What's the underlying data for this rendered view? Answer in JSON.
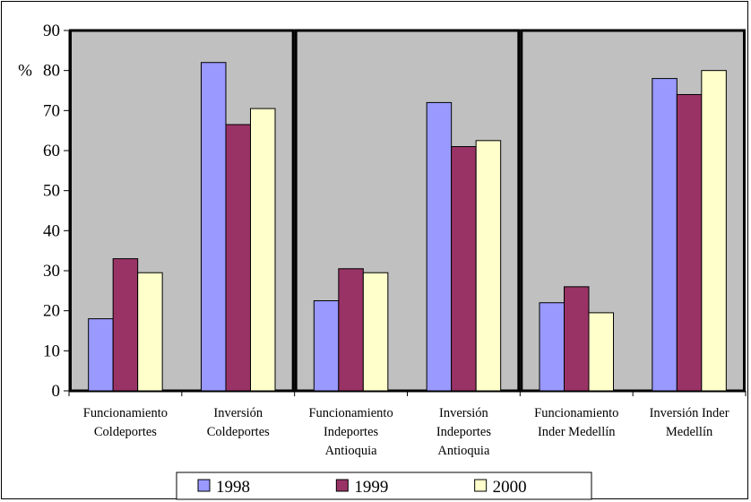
{
  "chart_data": {
    "type": "bar",
    "ylabel": "%",
    "ylim": [
      0,
      90
    ],
    "yticks": [
      0,
      10,
      20,
      30,
      40,
      50,
      60,
      70,
      80,
      90
    ],
    "grid": false,
    "legend_position": "bottom",
    "categories": [
      [
        "Funcionamiento",
        "Coldeportes"
      ],
      [
        "Inversión",
        "Coldeportes"
      ],
      [
        "Funcionamiento",
        "Indeportes",
        "Antioquia"
      ],
      [
        "Inversión",
        "Indeportes",
        "Antioquia"
      ],
      [
        "Funcionamiento",
        "Inder Medellín"
      ],
      [
        "Inversión Inder",
        "Medellín"
      ]
    ],
    "series": [
      {
        "name": "1998",
        "color": "#9999ff",
        "values": [
          18,
          82,
          22.5,
          72,
          22,
          78
        ]
      },
      {
        "name": "1999",
        "color": "#993366",
        "values": [
          33,
          66.5,
          30.5,
          61,
          26,
          74
        ]
      },
      {
        "name": "2000",
        "color": "#ffffcc",
        "values": [
          29.5,
          70.5,
          29.5,
          62.5,
          19.5,
          80
        ]
      }
    ],
    "plot_background": "#c0c0c0"
  }
}
